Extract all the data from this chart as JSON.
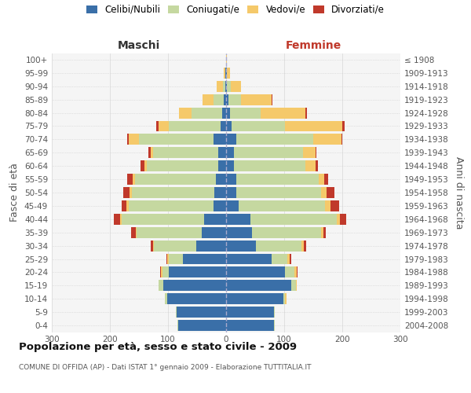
{
  "age_groups": [
    "0-4",
    "5-9",
    "10-14",
    "15-19",
    "20-24",
    "25-29",
    "30-34",
    "35-39",
    "40-44",
    "45-49",
    "50-54",
    "55-59",
    "60-64",
    "65-69",
    "70-74",
    "75-79",
    "80-84",
    "85-89",
    "90-94",
    "95-99",
    "100+"
  ],
  "birth_years": [
    "2004-2008",
    "1999-2003",
    "1994-1998",
    "1989-1993",
    "1984-1988",
    "1979-1983",
    "1974-1978",
    "1969-1973",
    "1964-1968",
    "1959-1963",
    "1954-1958",
    "1949-1953",
    "1944-1948",
    "1939-1943",
    "1934-1938",
    "1929-1933",
    "1924-1928",
    "1919-1923",
    "1914-1918",
    "1909-1913",
    "≤ 1908"
  ],
  "male_celibi": [
    82,
    85,
    102,
    108,
    98,
    75,
    52,
    42,
    38,
    22,
    20,
    17,
    14,
    14,
    22,
    10,
    7,
    4,
    2,
    1,
    0
  ],
  "male_coniugati": [
    2,
    2,
    4,
    8,
    12,
    24,
    72,
    112,
    142,
    145,
    142,
    140,
    122,
    112,
    128,
    88,
    52,
    18,
    4,
    1,
    0
  ],
  "male_vedovi": [
    0,
    0,
    0,
    0,
    2,
    2,
    2,
    2,
    2,
    4,
    4,
    4,
    4,
    4,
    18,
    18,
    22,
    18,
    10,
    2,
    0
  ],
  "male_divorziati": [
    0,
    0,
    0,
    0,
    2,
    2,
    4,
    7,
    11,
    9,
    11,
    9,
    7,
    4,
    2,
    4,
    0,
    0,
    0,
    0,
    0
  ],
  "female_celibi": [
    82,
    82,
    98,
    112,
    102,
    78,
    52,
    45,
    42,
    22,
    18,
    17,
    14,
    14,
    18,
    10,
    7,
    4,
    2,
    1,
    0
  ],
  "female_coniugati": [
    2,
    2,
    4,
    8,
    15,
    28,
    78,
    118,
    148,
    148,
    145,
    142,
    122,
    118,
    132,
    92,
    52,
    22,
    6,
    1,
    0
  ],
  "female_vedovi": [
    0,
    0,
    2,
    2,
    4,
    4,
    4,
    4,
    6,
    10,
    10,
    10,
    18,
    22,
    48,
    98,
    78,
    52,
    18,
    5,
    1
  ],
  "female_divorziati": [
    0,
    0,
    0,
    0,
    2,
    2,
    4,
    4,
    11,
    14,
    14,
    7,
    4,
    2,
    2,
    4,
    2,
    2,
    0,
    0,
    0
  ],
  "colors": {
    "celibi": "#3a6fa8",
    "coniugati": "#c5d8a0",
    "vedovi": "#f5c96a",
    "divorziati": "#c0392b"
  },
  "xlim": 300,
  "title": "Popolazione per età, sesso e stato civile - 2009",
  "subtitle": "COMUNE DI OFFIDA (AP) - Dati ISTAT 1° gennaio 2009 - Elaborazione TUTTITALIA.IT",
  "ylabel_left": "Fasce di età",
  "ylabel_right": "Anni di nascita",
  "xlabel_left": "Maschi",
  "xlabel_right": "Femmine"
}
